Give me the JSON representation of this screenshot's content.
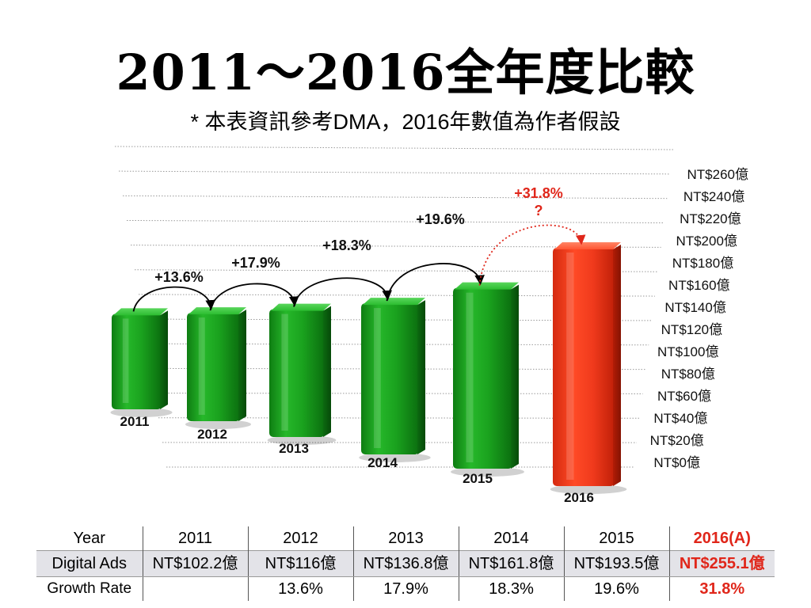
{
  "slide": {
    "title": "2011～2016全年度比較",
    "subtitle": "* 本表資訊參考DMA，2016年數值為作者假設"
  },
  "colors": {
    "bar_normal": "#1fa81f",
    "bar_highlight": "#f0361c",
    "highlight_text": "#e0261a",
    "arrow_normal": "#000000",
    "arrow_highlight": "#e0261a"
  },
  "chart_data": {
    "type": "bar",
    "categories": [
      "2011",
      "2012",
      "2013",
      "2014",
      "2015",
      "2016"
    ],
    "values": [
      102.2,
      116,
      136.8,
      161.8,
      193.5,
      255.1
    ],
    "growth_labels": [
      "+13.6%",
      "+17.9%",
      "+18.3%",
      "+19.6%",
      "+31.8%\n?"
    ],
    "y_ticks": [
      "NT$0億",
      "NT$20億",
      "NT$40億",
      "NT$60億",
      "NT$80億",
      "NT$100億",
      "NT$120億",
      "NT$140億",
      "NT$160億",
      "NT$180億",
      "NT$200億",
      "NT$220億",
      "NT$240億",
      "NT$260億"
    ],
    "ylim": [
      0,
      260
    ],
    "highlight_index": 5,
    "grid": true,
    "perspective": "3d"
  },
  "table": {
    "header": [
      "Year",
      "2011",
      "2012",
      "2013",
      "2014",
      "2015",
      "2016(A)"
    ],
    "rows": [
      [
        "Digital Ads",
        "NT$102.2億",
        "NT$116億",
        "NT$136.8億",
        "NT$161.8億",
        "NT$193.5億",
        "NT$255.1億"
      ],
      [
        "Growth Rate",
        "",
        "13.6%",
        "17.9%",
        "18.3%",
        "19.6%",
        "31.8%"
      ]
    ],
    "highlight_column": 6
  }
}
